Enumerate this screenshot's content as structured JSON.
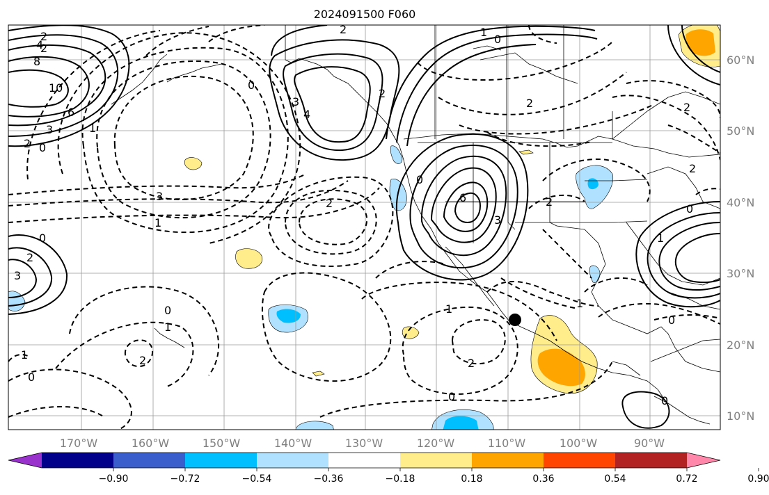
{
  "title": "2024091500 F060",
  "map": {
    "lat_labels": [
      "60°N",
      "50°N",
      "40°N",
      "30°N",
      "20°N",
      "10°N"
    ],
    "lon_labels": [
      "170°W",
      "160°W",
      "150°W",
      "140°W",
      "130°W",
      "120°W",
      "110°W",
      "100°W",
      "90°W"
    ],
    "contour_labels": [
      "2",
      "2",
      "4",
      "8",
      "10",
      "6",
      "3",
      "2",
      "0",
      "1",
      "0",
      "3",
      "4",
      "2",
      "1",
      "0",
      "2",
      "3",
      "1",
      "0",
      "6",
      "3",
      "2",
      "1",
      "0",
      "1",
      "2",
      "1",
      "0",
      "2",
      "3",
      "0",
      "2",
      "2",
      "0",
      "1",
      "2",
      "0",
      "2",
      "2",
      "1",
      "0",
      "0"
    ],
    "colors": {
      "contour": "#000000",
      "grid": "#999999",
      "coast": "#000000"
    }
  },
  "colorbar": {
    "colors": [
      "#9932cc",
      "#00008b",
      "#3a5fcd",
      "#00bfff",
      "#b0e2ff",
      "#ffffff",
      "#ffec8b",
      "#ffa500",
      "#ff4500",
      "#b22222",
      "#ff88aa"
    ],
    "tick_labels": [
      "−0.90",
      "−0.72",
      "−0.54",
      "−0.36",
      "−0.18",
      "0.18",
      "0.36",
      "0.54",
      "0.72",
      "0.90"
    ]
  }
}
